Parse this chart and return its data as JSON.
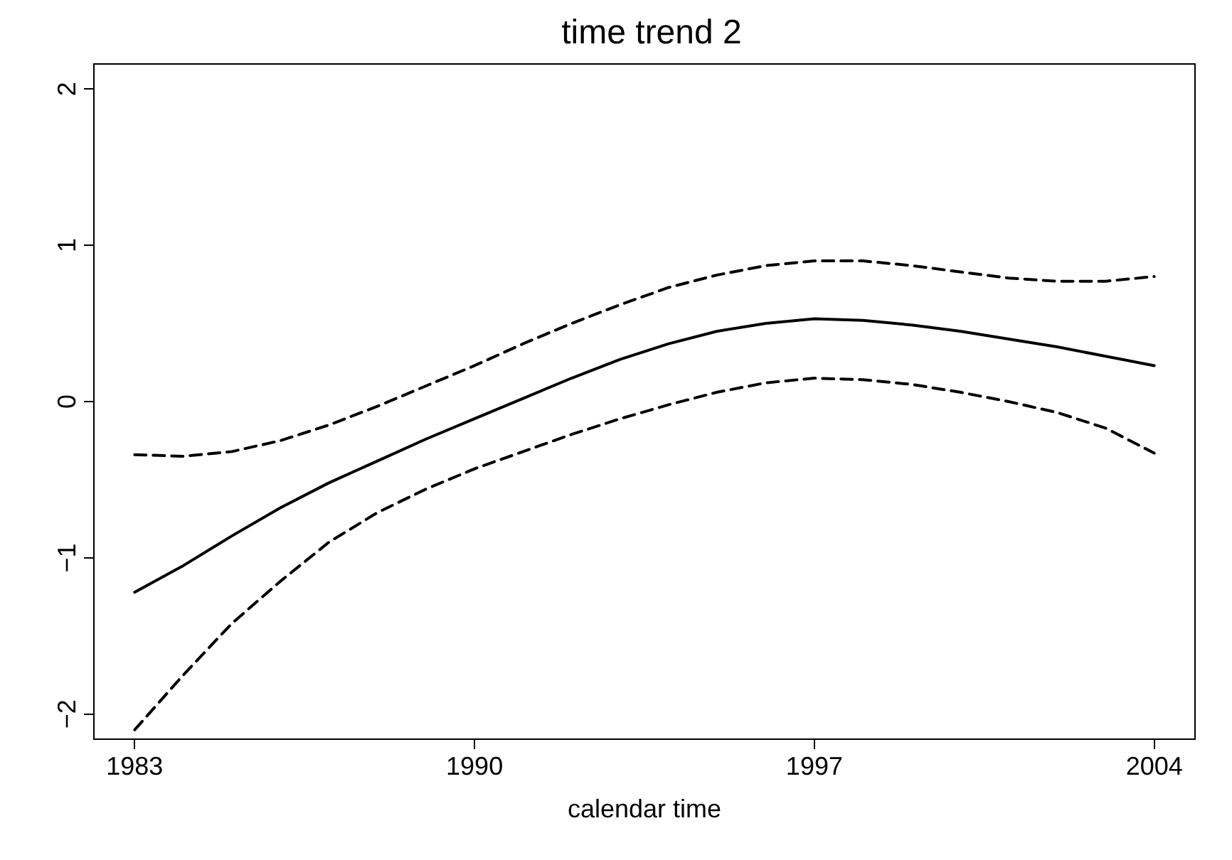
{
  "chart_data": {
    "type": "line",
    "title": "time trend 2",
    "xlabel": "calendar time",
    "x": [
      1983,
      1984,
      1985,
      1986,
      1987,
      1988,
      1989,
      1990,
      1991,
      1992,
      1993,
      1994,
      1995,
      1996,
      1997,
      1998,
      1999,
      2000,
      2001,
      2002,
      2003,
      2004
    ],
    "series": [
      {
        "color": "#000000",
        "line_style": "solid",
        "values": [
          -1.22,
          -1.05,
          -0.86,
          -0.68,
          -0.52,
          -0.38,
          -0.24,
          -0.11,
          0.02,
          0.15,
          0.27,
          0.37,
          0.45,
          0.5,
          0.53,
          0.52,
          0.49,
          0.45,
          0.4,
          0.35,
          0.29,
          0.23
        ]
      },
      {
        "color": "#000000",
        "line_style": "dashed",
        "values": [
          -0.34,
          -0.35,
          -0.32,
          -0.25,
          -0.15,
          -0.03,
          0.1,
          0.23,
          0.37,
          0.5,
          0.62,
          0.73,
          0.81,
          0.87,
          0.9,
          0.9,
          0.87,
          0.83,
          0.79,
          0.77,
          0.77,
          0.8
        ]
      },
      {
        "color": "#000000",
        "line_style": "dashed",
        "values": [
          -2.1,
          -1.75,
          -1.42,
          -1.15,
          -0.9,
          -0.71,
          -0.56,
          -0.43,
          -0.32,
          -0.21,
          -0.11,
          -0.02,
          0.06,
          0.12,
          0.15,
          0.14,
          0.11,
          0.06,
          0.0,
          -0.07,
          -0.17,
          -0.33
        ]
      }
    ],
    "xlim": [
      1982.16,
      2004.84
    ],
    "xticks": [
      1983,
      1990,
      1997,
      2004
    ],
    "ylim": [
      -2.16,
      2.16
    ],
    "yticks": [
      {
        "value": -2,
        "label": "−2"
      },
      {
        "value": -1,
        "label": "−1"
      },
      0,
      1,
      2
    ],
    "grid": false,
    "marker": "none"
  }
}
